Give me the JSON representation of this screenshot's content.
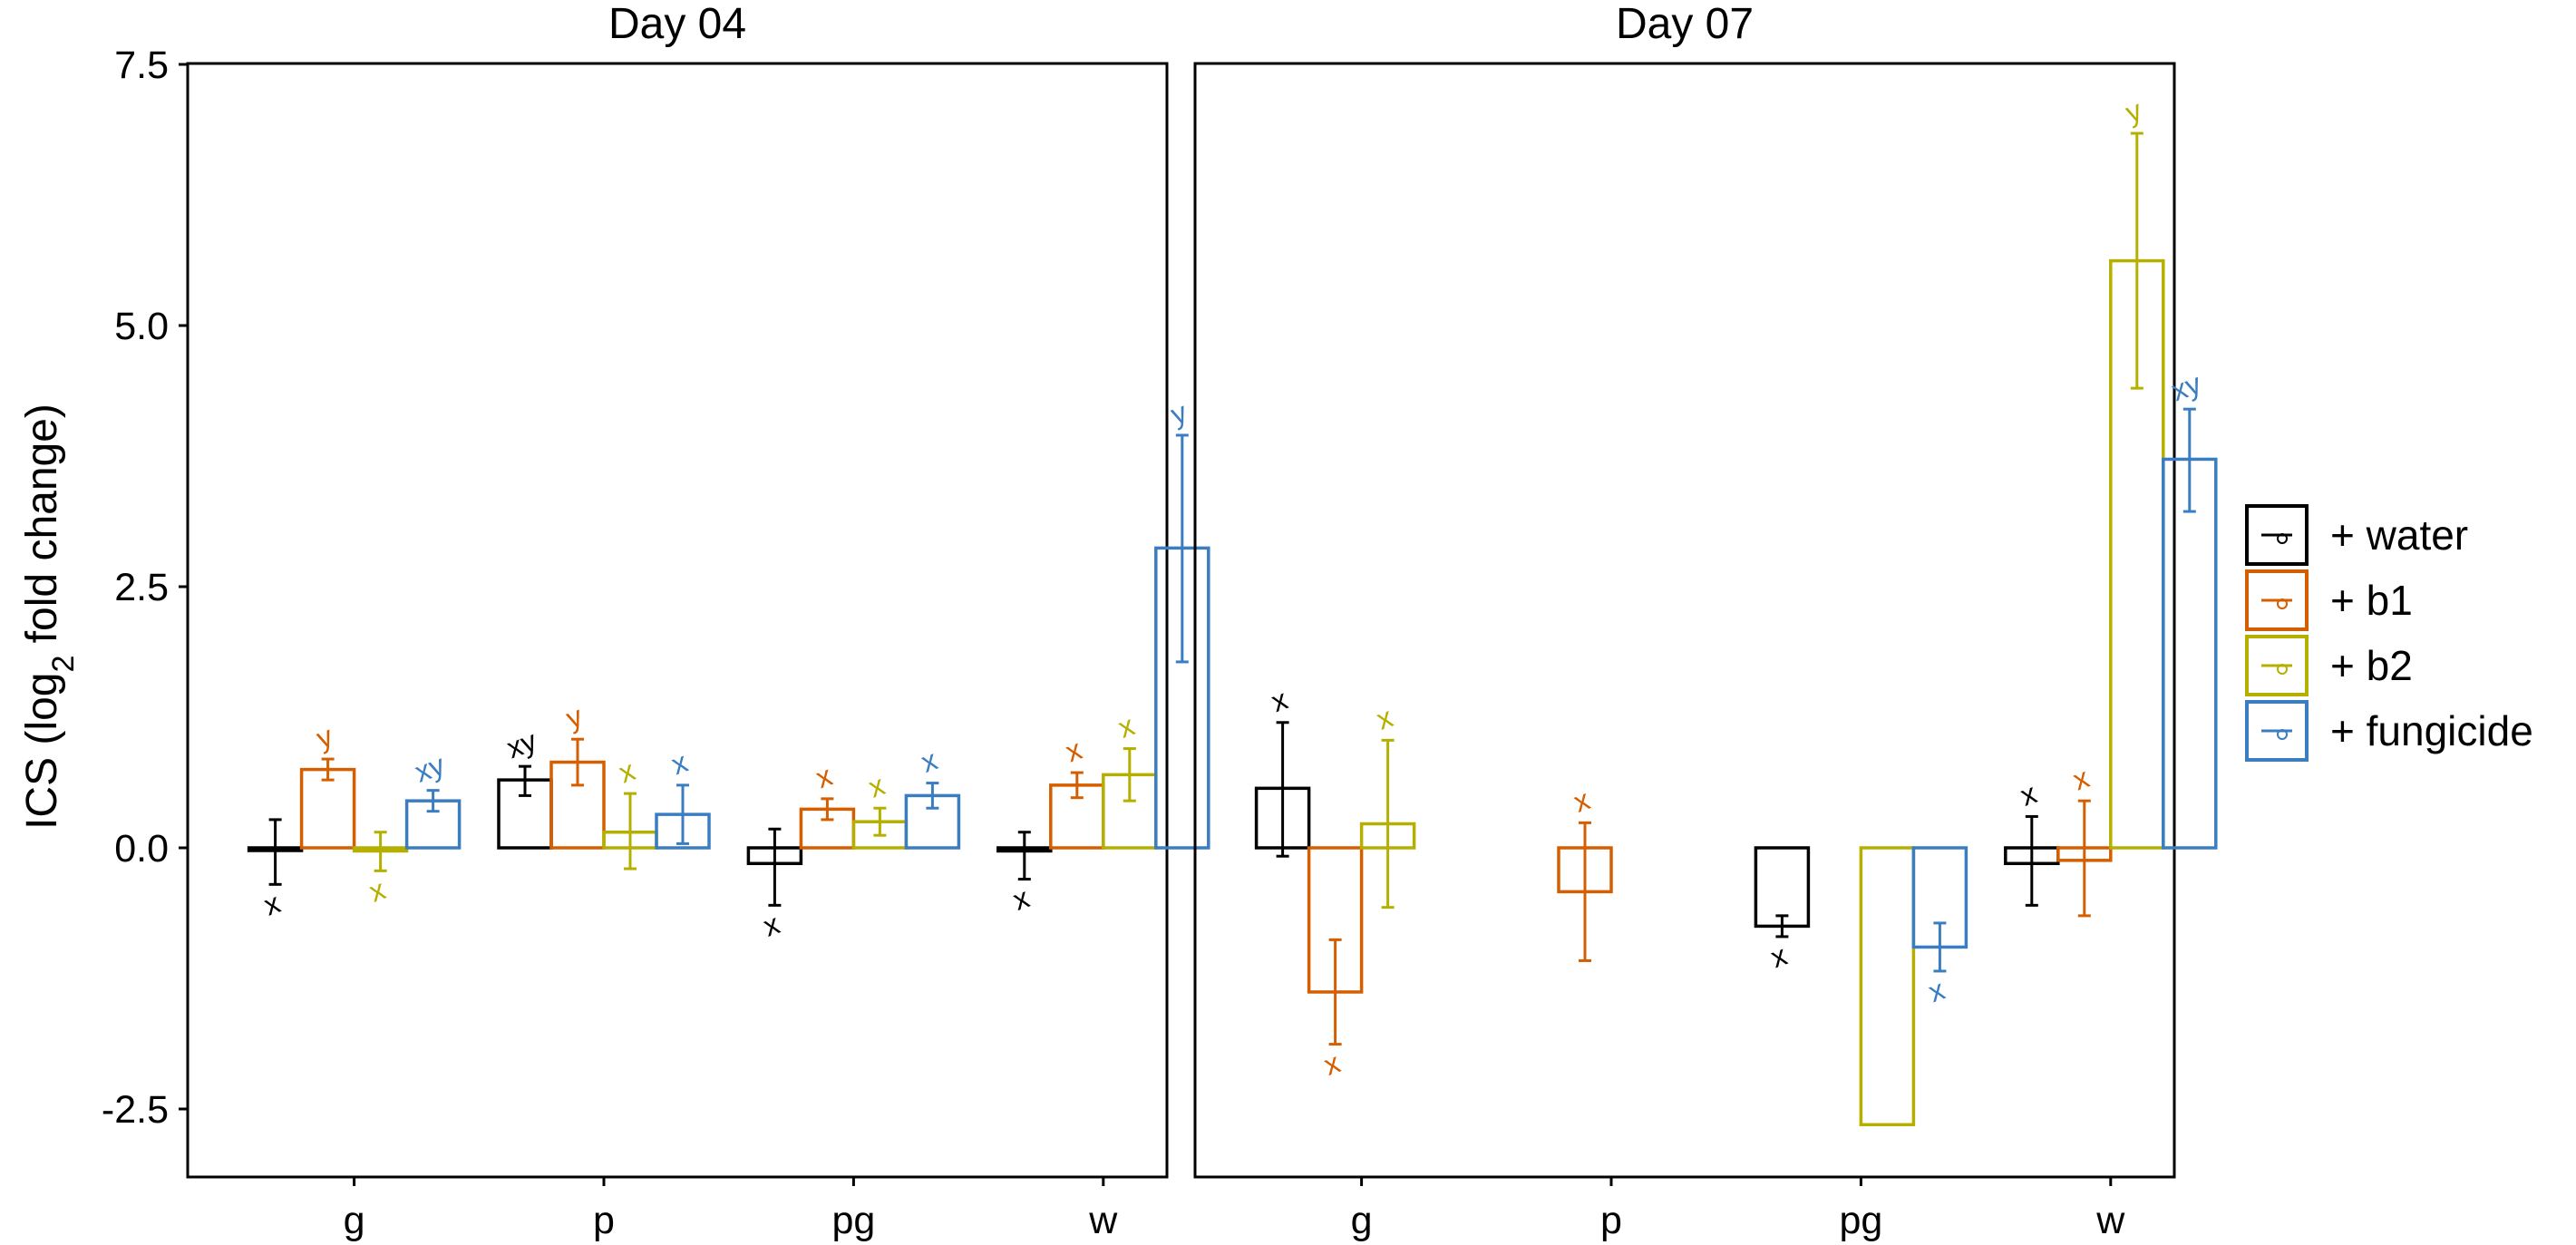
{
  "chart_data": {
    "type": "bar",
    "ylabel": {
      "prefix": "ICS (log",
      "subscript": "2",
      "suffix": " fold change)"
    },
    "ylim": [
      -3.1,
      7.5
    ],
    "yticks": [
      -2.5,
      0.0,
      2.5,
      5.0,
      7.5
    ],
    "ytick_labels": [
      "-2.5",
      "0.0",
      "2.5",
      "5.0",
      "7.5"
    ],
    "categories": [
      "g",
      "p",
      "pg",
      "w"
    ],
    "legend": {
      "position": "right",
      "entries": [
        "+ water",
        "+ b1",
        "+ b2",
        "+ fungicide"
      ]
    },
    "series_colors": {
      "+ water": "#000000",
      "+ b1": "#D55E00",
      "+ b2": "#B5B000",
      "+ fungicide": "#3A7DC0"
    },
    "panels": [
      {
        "title": "Day 04",
        "series": [
          {
            "name": "+ water",
            "values": [
              0.0,
              0.65,
              -0.15,
              -0.03
            ],
            "err_low": [
              -0.35,
              0.5,
              -0.55,
              -0.3
            ],
            "err_high": [
              0.27,
              0.78,
              0.18,
              0.15
            ],
            "labels": [
              "x",
              "xy",
              "x",
              "x"
            ]
          },
          {
            "name": "+ b1",
            "values": [
              0.75,
              0.82,
              0.37,
              0.6
            ],
            "err_low": [
              0.65,
              0.6,
              0.27,
              0.48
            ],
            "err_high": [
              0.85,
              1.04,
              0.47,
              0.72
            ],
            "labels": [
              "y",
              "y",
              "x",
              "x"
            ]
          },
          {
            "name": "+ b2",
            "values": [
              -0.03,
              0.15,
              0.25,
              0.7
            ],
            "err_low": [
              -0.22,
              -0.2,
              0.12,
              0.45
            ],
            "err_high": [
              0.15,
              0.52,
              0.38,
              0.95
            ],
            "labels": [
              "x",
              "x",
              "x",
              "x"
            ]
          },
          {
            "name": "+ fungicide",
            "values": [
              0.45,
              0.32,
              0.5,
              2.87
            ],
            "err_low": [
              0.35,
              0.04,
              0.38,
              1.78
            ],
            "err_high": [
              0.55,
              0.6,
              0.62,
              3.95
            ],
            "labels": [
              "xy",
              "x",
              "x",
              "y"
            ]
          }
        ]
      },
      {
        "title": "Day 07",
        "series": [
          {
            "name": "+ water",
            "values": [
              0.57,
              null,
              -0.75,
              -0.15
            ],
            "err_low": [
              -0.08,
              null,
              -0.85,
              -0.55
            ],
            "err_high": [
              1.2,
              null,
              -0.65,
              0.3
            ],
            "labels": [
              "x",
              "",
              "x",
              "x"
            ]
          },
          {
            "name": "+ b1",
            "values": [
              -1.38,
              -0.42,
              null,
              -0.12
            ],
            "err_low": [
              -1.88,
              -1.08,
              null,
              -0.65
            ],
            "err_high": [
              -0.88,
              0.24,
              null,
              0.45
            ],
            "labels": [
              "x",
              "x",
              "",
              "x"
            ]
          },
          {
            "name": "+ b2",
            "values": [
              0.23,
              null,
              -2.65,
              5.62
            ],
            "err_low": [
              -0.57,
              null,
              null,
              4.4
            ],
            "err_high": [
              1.03,
              null,
              null,
              6.84
            ],
            "labels": [
              "x",
              "",
              "",
              "y"
            ]
          },
          {
            "name": "+ fungicide",
            "values": [
              null,
              null,
              -0.95,
              3.72
            ],
            "err_low": [
              null,
              null,
              -1.18,
              3.22
            ],
            "err_high": [
              null,
              null,
              -0.72,
              4.2
            ],
            "labels": [
              "",
              "",
              "x",
              "xy"
            ]
          }
        ]
      }
    ]
  }
}
